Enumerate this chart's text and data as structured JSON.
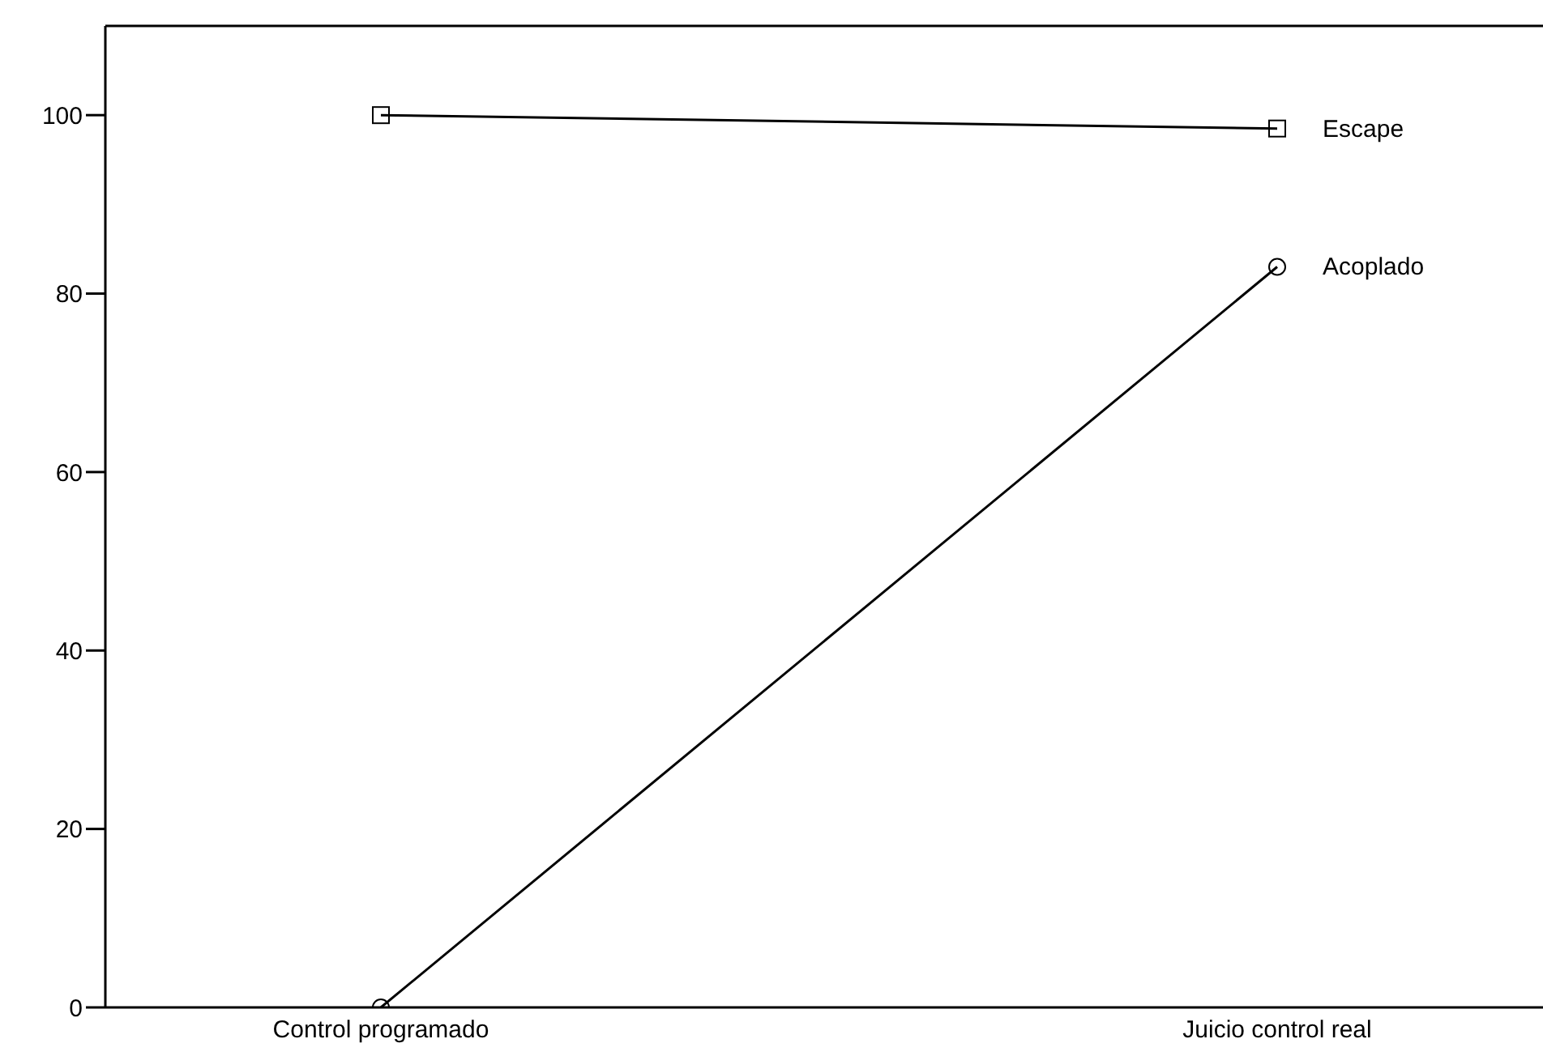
{
  "chart_data": {
    "type": "line",
    "categories": [
      "Control programado",
      "Juicio control real"
    ],
    "series": [
      {
        "name": "Escape",
        "color": "#000000",
        "marker": "square",
        "values": [
          100,
          98.5
        ]
      },
      {
        "name": "Acoplado",
        "color": "#000000",
        "marker": "circle",
        "values": [
          0,
          83
        ]
      }
    ],
    "ylim": [
      0,
      110
    ],
    "yticks": [
      0,
      20,
      40,
      60,
      80,
      100
    ],
    "grid": false,
    "legend": false
  }
}
